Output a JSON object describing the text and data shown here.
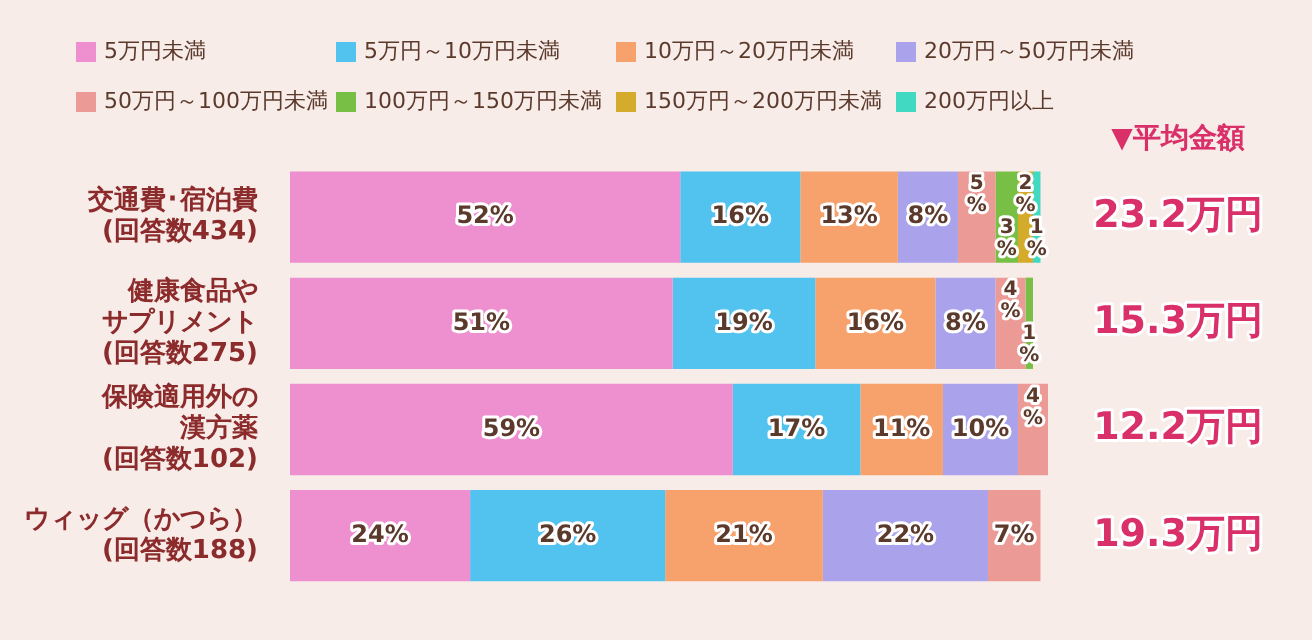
{
  "chart_data": {
    "type": "bar",
    "orientation": "horizontal",
    "stacked": true,
    "legend": "top",
    "tick_labels": "y",
    "categories": [
      "交通費･宿泊費(回答数434)",
      "健康食品やサプリメント(回答数275)",
      "保険適用外の漢方薬(回答数102)",
      "ウィッグ（かつら）(回答数188)"
    ],
    "series": [
      {
        "name": "5万円未満",
        "color": "#ee90d0",
        "values": [
          52,
          51,
          59,
          24
        ],
        "value_labels": [
          "52%",
          "51%",
          "59%",
          "24%"
        ]
      },
      {
        "name": "5万円～10万円未満",
        "color": "#52c2ef",
        "values": [
          16,
          19,
          17,
          26
        ],
        "value_labels": [
          "16%",
          "19%",
          "17%",
          "26%"
        ]
      },
      {
        "name": "10万円～20万円未満",
        "color": "#f7a26c",
        "values": [
          13,
          16,
          11,
          21
        ],
        "value_labels": [
          "13%",
          "16%",
          "11%",
          "21%"
        ]
      },
      {
        "name": "20万円～50万円未満",
        "color": "#aaa3ec",
        "values": [
          8,
          8,
          10,
          22
        ],
        "value_labels": [
          "8%",
          "8%",
          "10%",
          "22%"
        ]
      },
      {
        "name": "50万円～100万円未満",
        "color": "#ec9a95",
        "values": [
          5,
          4,
          4,
          7
        ],
        "value_labels": [
          "5%",
          "4%",
          "4%",
          "7%"
        ]
      },
      {
        "name": "100万円～150万円未満",
        "color": "#78c045",
        "values": [
          3,
          1,
          0,
          0
        ],
        "value_labels": [
          "3%",
          "1%",
          null,
          null
        ]
      },
      {
        "name": "150万円～200万円未満",
        "color": "#d5ab2c",
        "values": [
          2,
          0,
          0,
          0
        ],
        "value_labels": [
          "2%",
          null,
          null,
          null
        ]
      },
      {
        "name": "200万円以上",
        "color": "#42d9c2",
        "values": [
          1,
          0,
          0,
          0
        ],
        "value_labels": [
          "1%",
          null,
          null,
          null
        ]
      }
    ],
    "annotations": [
      "▼平均金額",
      "23.2万円",
      "15.3万円",
      "12.2万円",
      "19.3万円"
    ]
  }
}
